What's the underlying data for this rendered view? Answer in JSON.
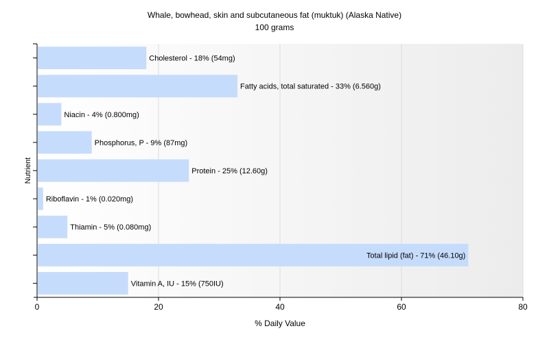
{
  "chart_data": {
    "type": "bar",
    "orientation": "horizontal",
    "title": "Whale, bowhead, skin and subcutaneous fat (muktuk) (Alaska Native)",
    "subtitle": "100 grams",
    "xlabel": "% Daily Value",
    "ylabel": "Nutrient",
    "xlim": [
      0,
      80
    ],
    "xticks": [
      0,
      20,
      40,
      60,
      80
    ],
    "grid": true,
    "legend": "none",
    "bar_color": "#c6dcfc",
    "categories": [
      "Cholesterol",
      "Fatty acids, total saturated",
      "Niacin",
      "Phosphorus, P",
      "Protein",
      "Riboflavin",
      "Thiamin",
      "Total lipid (fat)",
      "Vitamin A, IU"
    ],
    "values": [
      18,
      33,
      4,
      9,
      25,
      1,
      5,
      71,
      15
    ],
    "data_labels": [
      "Cholesterol - 18% (54mg)",
      "Fatty acids, total saturated - 33% (6.560g)",
      "Niacin - 4% (0.800mg)",
      "Phosphorus, P - 9% (87mg)",
      "Protein - 25% (12.60g)",
      "Riboflavin - 1% (0.020mg)",
      "Thiamin - 5% (0.080mg)",
      "Total lipid (fat) - 71% (46.10g)",
      "Vitamin A, IU - 15% (750IU)"
    ]
  }
}
